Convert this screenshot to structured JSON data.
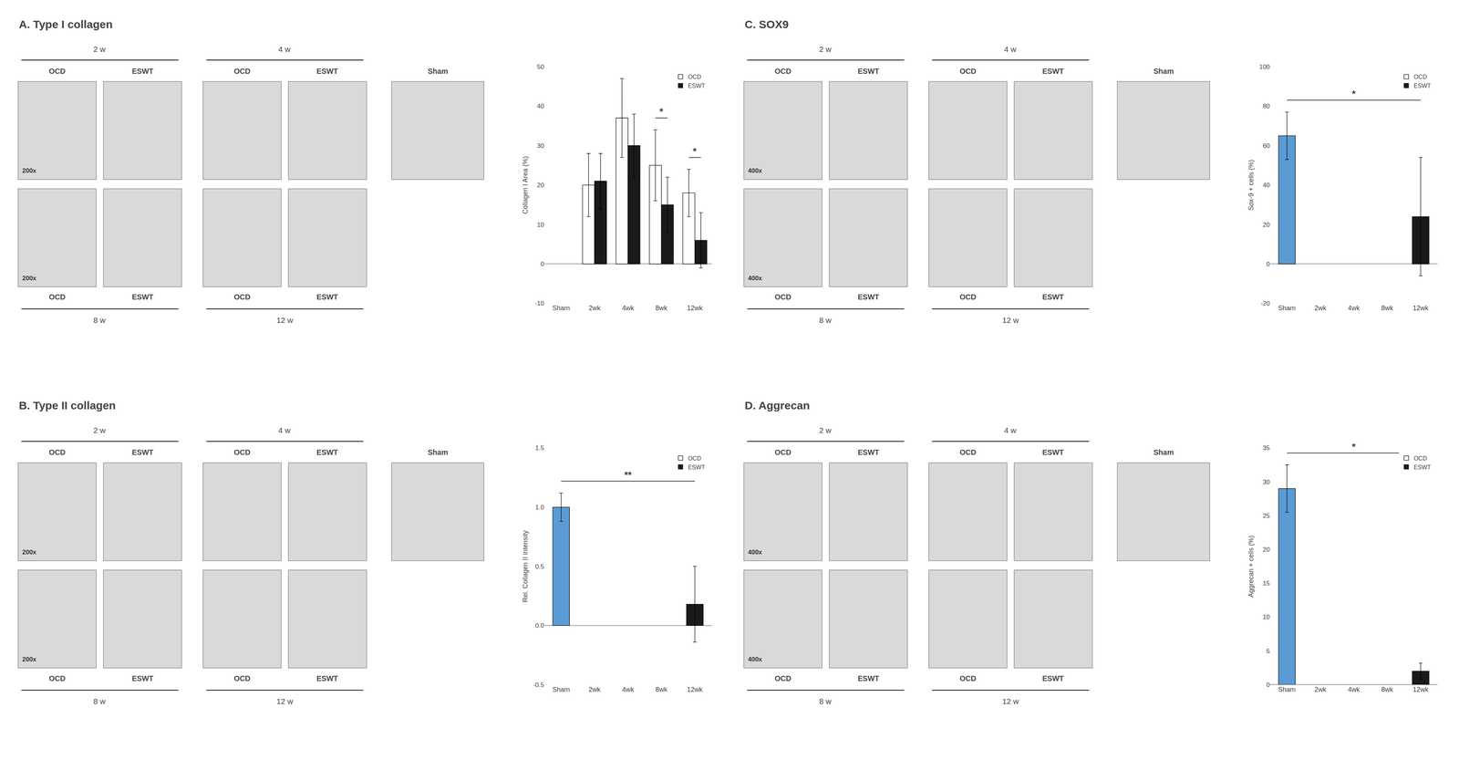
{
  "chart_data": [
    {
      "type": "bar",
      "title": "A. Type I collagen",
      "categories": [
        "Sham",
        "2wk",
        "4wk",
        "8wk",
        "12wk"
      ],
      "series": [
        {
          "name": "OCD",
          "color": "#ffffff",
          "values": [
            null,
            20.0,
            37.0,
            25.0,
            18.0
          ],
          "errors": [
            null,
            8.0,
            10.0,
            9.0,
            6.0
          ]
        },
        {
          "name": "ESWT",
          "color": "#1a1a1a",
          "values": [
            null,
            21.0,
            30.0,
            15.0,
            6.0
          ],
          "errors": [
            null,
            7.0,
            8.0,
            7.0,
            7.0
          ]
        }
      ],
      "ylabel": "Collagen I Area (%)",
      "ylim": [
        -10,
        50
      ],
      "yticks": [
        -10,
        0,
        10,
        20,
        30,
        40,
        50
      ],
      "grid": false,
      "legend": "upper right",
      "annotations": [
        {
          "text": "*",
          "between": [
            "8wk",
            "8wk"
          ]
        },
        {
          "text": "*",
          "between": [
            "12wk",
            "12wk"
          ]
        }
      ],
      "image_labels": {
        "top": [
          "2 w",
          "4 w"
        ],
        "bottom": [
          "8 w",
          "12 w"
        ],
        "columns": [
          "OCD",
          "ESWT",
          "OCD",
          "ESWT"
        ],
        "sham": "Sham",
        "magnification": "200x"
      }
    },
    {
      "type": "bar",
      "title": "B. Type II collagen",
      "categories": [
        "Sham",
        "2wk",
        "4wk",
        "8wk",
        "12wk"
      ],
      "series": [
        {
          "color": "#5b9bd5",
          "values": [
            1.0,
            null,
            null,
            null,
            null
          ],
          "errors": [
            0.12,
            null,
            null,
            null,
            null
          ]
        },
        {
          "name": "OCD",
          "color": "#ffffff",
          "values": [
            null,
            null,
            null,
            null,
            null
          ]
        },
        {
          "name": "ESWT",
          "color": "#1a1a1a",
          "values": [
            null,
            null,
            null,
            null,
            0.18
          ],
          "errors": [
            null,
            null,
            null,
            null,
            0.32
          ]
        }
      ],
      "ylabel": "Rel. Collagen II intensity",
      "ylim": [
        -0.5,
        1.5
      ],
      "yticks": [
        -0.5,
        {
          "value": 0,
          "label": "0.0"
        },
        0.5,
        {
          "value": 1.0,
          "label": "1.0"
        },
        1.5
      ],
      "grid": false,
      "legend": "upper right",
      "annotations": [
        {
          "text": "**",
          "between": [
            "Sham",
            "12wk"
          ]
        }
      ],
      "image_labels": {
        "top": [
          "2 w",
          "4 w"
        ],
        "bottom": [
          "8 w",
          "12 w"
        ],
        "columns": [
          "OCD",
          "ESWT",
          "OCD",
          "ESWT"
        ],
        "sham": "Sham",
        "magnification": "200x"
      }
    },
    {
      "type": "bar",
      "title": "C. SOX9",
      "categories": [
        "Sham",
        "2wk",
        "4wk",
        "8wk",
        "12wk"
      ],
      "series": [
        {
          "color": "#5b9bd5",
          "values": [
            65.0,
            null,
            null,
            null,
            null
          ],
          "errors": [
            12.0,
            null,
            null,
            null,
            null
          ]
        },
        {
          "name": "OCD",
          "color": "#ffffff",
          "values": [
            null,
            null,
            null,
            null,
            null
          ]
        },
        {
          "name": "ESWT",
          "color": "#1a1a1a",
          "values": [
            null,
            null,
            null,
            null,
            24.0
          ],
          "errors": [
            null,
            null,
            null,
            null,
            30.0
          ]
        }
      ],
      "ylabel": "Sox-9 + cells (%)",
      "ylim": [
        -20,
        100
      ],
      "yticks": [
        -20,
        0,
        20,
        40,
        60,
        80,
        100
      ],
      "grid": false,
      "legend": "upper right",
      "annotations": [
        {
          "text": "*",
          "between": [
            "Sham",
            "12wk"
          ]
        }
      ],
      "image_labels": {
        "top": [
          "2 w",
          "4 w"
        ],
        "bottom": [
          "8 w",
          "12 w"
        ],
        "columns": [
          "OCD",
          "ESWT",
          "OCD",
          "ESWT"
        ],
        "sham": "Sham",
        "magnification": "400x"
      }
    },
    {
      "type": "bar",
      "title": "D. Aggrecan",
      "categories": [
        "Sham",
        "2wk",
        "4wk",
        "8wk",
        "12wk"
      ],
      "series": [
        {
          "color": "#5b9bd5",
          "values": [
            29.0,
            null,
            null,
            null,
            null
          ],
          "errors": [
            3.5,
            null,
            null,
            null,
            null
          ]
        },
        {
          "name": "OCD",
          "color": "#ffffff",
          "values": [
            null,
            null,
            null,
            null,
            null
          ]
        },
        {
          "name": "ESWT",
          "color": "#1a1a1a",
          "values": [
            null,
            null,
            null,
            null,
            2.0
          ],
          "errors": [
            null,
            null,
            null,
            null,
            1.2
          ]
        }
      ],
      "ylabel": "Aggrecan + cells (%)",
      "ylim": [
        0,
        35
      ],
      "yticks": [
        0,
        5,
        10,
        15,
        20,
        25,
        30,
        35
      ],
      "grid": false,
      "legend": "upper right",
      "annotations": [
        {
          "text": "*",
          "between": [
            "Sham",
            "12wk"
          ]
        }
      ],
      "image_labels": {
        "top": [
          "2 w",
          "4 w"
        ],
        "bottom": [
          "8 w",
          "12 w"
        ],
        "columns": [
          "OCD",
          "ESWT",
          "OCD",
          "ESWT"
        ],
        "sham": "Sham",
        "magnification": "400x"
      }
    }
  ]
}
